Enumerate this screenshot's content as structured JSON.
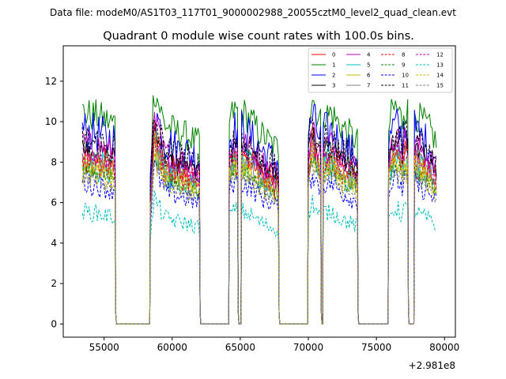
{
  "chart_data": {
    "type": "line",
    "suptitle": "Data file: modeM0/AS1T03_117T01_9000002988_20055cztM0_level2_quad_clean.evt",
    "title": "Quadrant 0 module wise count rates with 100.0s bins.",
    "xlabel": "",
    "ylabel": "",
    "x_offset_label": "+2.981e8",
    "xlim": [
      52000,
      80800
    ],
    "ylim": [
      -0.65,
      13.75
    ],
    "xticks": [
      55000,
      60000,
      65000,
      70000,
      75000,
      80000
    ],
    "xtick_labels": [
      "55000",
      "60000",
      "65000",
      "70000",
      "75000",
      "80000"
    ],
    "yticks": [
      0,
      2,
      4,
      6,
      8,
      10,
      12
    ],
    "ytick_labels": [
      "0",
      "2",
      "4",
      "6",
      "8",
      "10",
      "12"
    ],
    "bin_seconds": 100,
    "legend_position": "top-right",
    "profile": {
      "segments": [
        {
          "x_start": 53400,
          "x_end": 55800,
          "shape": [
            1.0,
            0.99,
            0.98,
            0.98,
            0.97,
            0.96,
            0.95,
            0.95
          ],
          "x_zero_from": 56100
        },
        {
          "x_start": 58400,
          "x_end": 62000,
          "shape": [
            0.72,
            1.12,
            1.06,
            1.0,
            0.94,
            0.93,
            0.92,
            0.91,
            0.9,
            0.9,
            0.89,
            0.88,
            0.87,
            0.86,
            0.85
          ]
        },
        {
          "x_start": 64200,
          "x_end": 64800,
          "shape": [
            0.95,
            1.0,
            1.0
          ]
        },
        {
          "x_start": 65100,
          "x_end": 67800,
          "shape": [
            1.0,
            0.98,
            0.96,
            0.93,
            0.9,
            0.88,
            0.86,
            0.84,
            0.83
          ]
        },
        {
          "x_start": 70000,
          "x_end": 70900,
          "shape": [
            0.95,
            1.08,
            1.0,
            0.95
          ]
        },
        {
          "x_start": 71100,
          "x_end": 71500,
          "shape": [
            1.0,
            0.98
          ]
        },
        {
          "x_start": 71600,
          "x_end": 73600,
          "shape": [
            1.0,
            0.97,
            0.94,
            0.92,
            0.9,
            0.88,
            0.86
          ]
        },
        {
          "x_start": 75900,
          "x_end": 76900,
          "shape": [
            0.92,
            1.0,
            1.02,
            1.0,
            0.95
          ]
        },
        {
          "x_start": 77000,
          "x_end": 77300,
          "shape": [
            1.02,
            1.0
          ]
        },
        {
          "x_start": 77800,
          "x_end": 79400,
          "shape": [
            1.0,
            0.97,
            0.95,
            0.93,
            0.9,
            0.85
          ]
        }
      ],
      "gap_value": 0
    },
    "series": [
      {
        "name": "0",
        "color": "#ff0000",
        "dash": "solid",
        "base": 8.3
      },
      {
        "name": "1",
        "color": "#008000",
        "dash": "solid",
        "base": 10.5
      },
      {
        "name": "2",
        "color": "#0000ff",
        "dash": "solid",
        "base": 9.6
      },
      {
        "name": "3",
        "color": "#000000",
        "dash": "solid",
        "base": 8.8
      },
      {
        "name": "4",
        "color": "#bf00bf",
        "dash": "solid",
        "base": 9.0
      },
      {
        "name": "5",
        "color": "#00bfbf",
        "dash": "solid",
        "base": 8.0
      },
      {
        "name": "6",
        "color": "#bfbf00",
        "dash": "solid",
        "base": 7.8
      },
      {
        "name": "7",
        "color": "#808080",
        "dash": "solid",
        "base": 8.1
      },
      {
        "name": "8",
        "color": "#ff0000",
        "dash": "dashed",
        "base": 8.2
      },
      {
        "name": "9",
        "color": "#008000",
        "dash": "dashed",
        "base": 7.6
      },
      {
        "name": "10",
        "color": "#0000ff",
        "dash": "dashed",
        "base": 7.0
      },
      {
        "name": "11",
        "color": "#000000",
        "dash": "dashed",
        "base": 9.1
      },
      {
        "name": "12",
        "color": "#bf00bf",
        "dash": "dashed",
        "base": 8.4
      },
      {
        "name": "13",
        "color": "#00bfbf",
        "dash": "dashed",
        "base": 5.6
      },
      {
        "name": "14",
        "color": "#bfbf00",
        "dash": "dashed",
        "base": 7.7
      },
      {
        "name": "15",
        "color": "#808080",
        "dash": "dashed",
        "base": 7.3
      }
    ]
  }
}
